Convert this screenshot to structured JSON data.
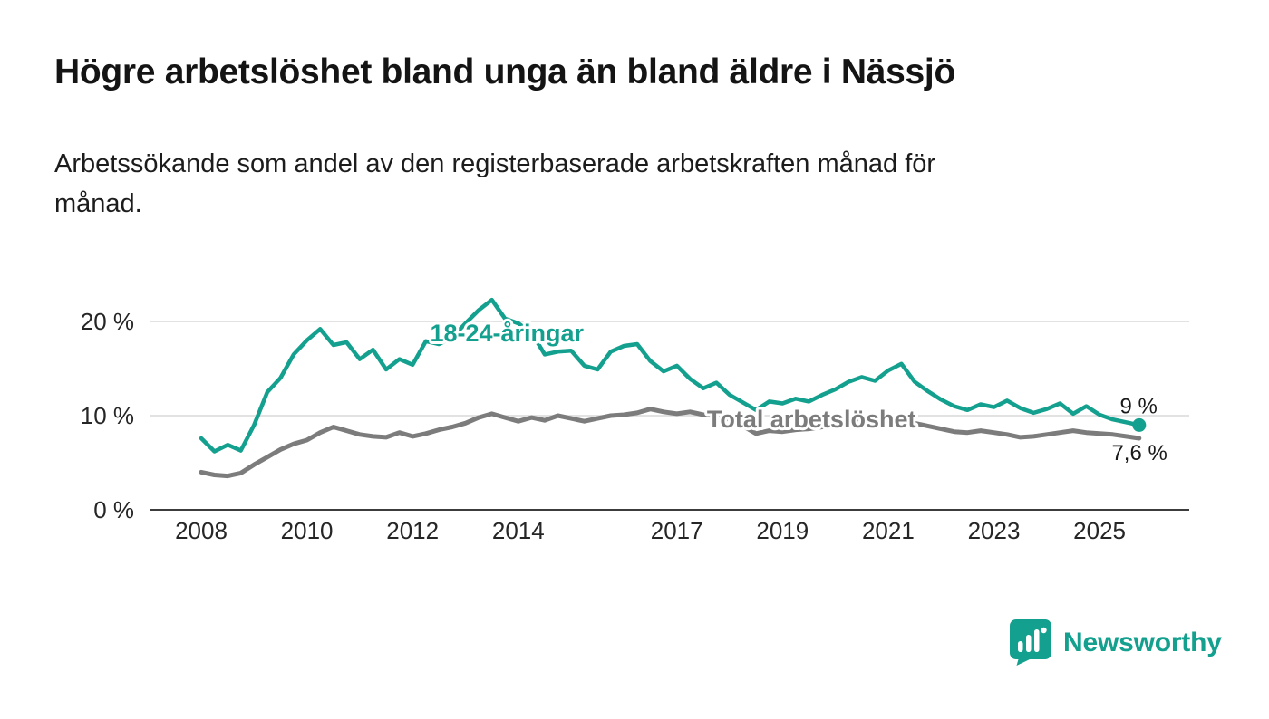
{
  "title": "Högre arbetslöshet bland unga än bland äldre i Nässjö",
  "subtitle": "Arbetssökande som andel av den registerbaserade arbetskraften månad för månad.",
  "branding": {
    "name": "Newsworthy",
    "icon": "newsworthy-speech-bubble-bar-chart-icon",
    "color": "#14A08E"
  },
  "colors": {
    "accent_teal": "#14A08E",
    "total_gray": "#7C7C7C",
    "grid": "#D9D9D9",
    "axis": "#3C3C3C",
    "text": "#141414",
    "background": "#FFFFFF"
  },
  "chart_data": {
    "type": "line",
    "title": "Högre arbetslöshet bland unga än bland äldre i Nässjö",
    "subtitle": "Arbetssökande som andel av den registerbaserade arbetskraften månad för månad.",
    "xlabel": "",
    "ylabel": "",
    "grid": "horizontal",
    "legend": "inline-labels",
    "xlim": [
      2007.8,
      2026.6
    ],
    "ylim": [
      0,
      24
    ],
    "x_ticks": [
      2008,
      2010,
      2012,
      2014,
      2017,
      2019,
      2021,
      2023,
      2025
    ],
    "y_ticks": [
      {
        "value": 0,
        "label": "0 %"
      },
      {
        "value": 10,
        "label": "10 %"
      },
      {
        "value": 20,
        "label": "20 %"
      }
    ],
    "x": [
      2008,
      2008.25,
      2008.5,
      2008.75,
      2009,
      2009.25,
      2009.5,
      2009.75,
      2010,
      2010.25,
      2010.5,
      2010.75,
      2011,
      2011.25,
      2011.5,
      2011.75,
      2012,
      2012.25,
      2012.5,
      2012.75,
      2013,
      2013.25,
      2013.5,
      2013.75,
      2014,
      2014.25,
      2014.5,
      2014.75,
      2015,
      2015.25,
      2015.5,
      2015.75,
      2016,
      2016.25,
      2016.5,
      2016.75,
      2017,
      2017.25,
      2017.5,
      2017.75,
      2018,
      2018.25,
      2018.5,
      2018.75,
      2019,
      2019.25,
      2019.5,
      2019.75,
      2020,
      2020.25,
      2020.5,
      2020.75,
      2021,
      2021.25,
      2021.5,
      2021.75,
      2022,
      2022.25,
      2022.5,
      2022.75,
      2023,
      2023.25,
      2023.5,
      2023.75,
      2024,
      2024.25,
      2024.5,
      2024.75,
      2025,
      2025.25,
      2025.5,
      2025.75
    ],
    "series": [
      {
        "name": "18-24-åringar",
        "color": "#14A08E",
        "end_label": "9 %",
        "end_dot": true,
        "label_pos": {
          "x": 2012.33,
          "y": 17.9
        },
        "values": [
          7.6,
          6.2,
          6.9,
          6.3,
          9.0,
          12.5,
          14.0,
          16.5,
          18.0,
          19.2,
          17.5,
          17.8,
          16.0,
          17.0,
          14.9,
          16.0,
          15.4,
          17.9,
          17.6,
          18.3,
          19.8,
          21.2,
          22.3,
          20.3,
          19.8,
          18.8,
          16.5,
          16.8,
          16.9,
          15.3,
          14.9,
          16.8,
          17.4,
          17.6,
          15.8,
          14.7,
          15.3,
          13.9,
          12.9,
          13.5,
          12.2,
          11.4,
          10.6,
          11.5,
          11.3,
          11.8,
          11.5,
          12.2,
          12.8,
          13.6,
          14.1,
          13.7,
          14.8,
          15.5,
          13.6,
          12.6,
          11.7,
          11.0,
          10.6,
          11.2,
          10.9,
          11.6,
          10.8,
          10.3,
          10.7,
          11.3,
          10.2,
          11.0,
          10.1,
          9.6,
          9.3,
          9.0
        ]
      },
      {
        "name": "Total arbetslöshet",
        "color": "#7C7C7C",
        "end_label": "7,6 %",
        "end_dot": false,
        "label_pos": {
          "x": 2017.57,
          "y": 8.75
        },
        "values": [
          4.0,
          3.7,
          3.6,
          3.9,
          4.8,
          5.6,
          6.4,
          7.0,
          7.4,
          8.2,
          8.8,
          8.4,
          8.0,
          7.8,
          7.7,
          8.2,
          7.8,
          8.1,
          8.5,
          8.8,
          9.2,
          9.8,
          10.2,
          9.8,
          9.4,
          9.8,
          9.5,
          10.0,
          9.7,
          9.4,
          9.7,
          10.0,
          10.1,
          10.3,
          10.7,
          10.4,
          10.2,
          10.4,
          10.1,
          10.0,
          9.6,
          8.9,
          8.1,
          8.4,
          8.3,
          8.5,
          8.6,
          8.8,
          9.0,
          9.5,
          9.7,
          9.4,
          9.5,
          9.7,
          9.2,
          8.9,
          8.6,
          8.3,
          8.2,
          8.4,
          8.2,
          8.0,
          7.7,
          7.8,
          8.0,
          8.2,
          8.4,
          8.2,
          8.1,
          8.0,
          7.8,
          7.6
        ]
      }
    ]
  }
}
